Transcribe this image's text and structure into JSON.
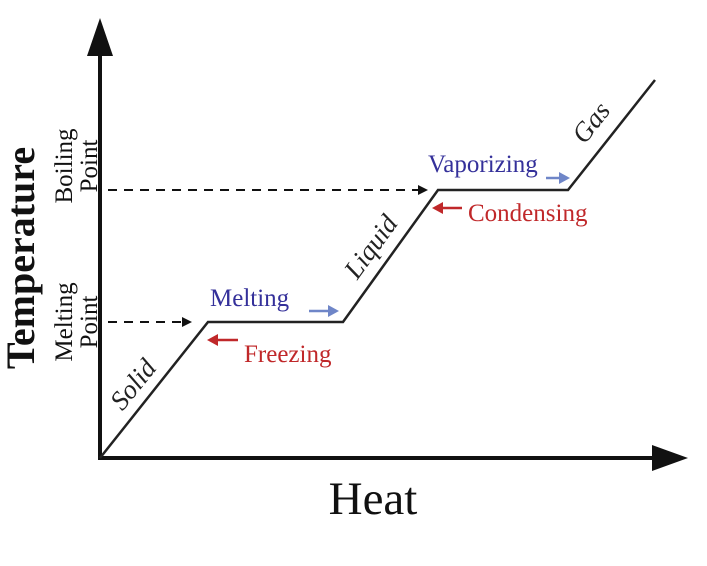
{
  "diagram": {
    "x_axis_label": "Heat",
    "y_axis_label": "Temperature",
    "melting_point_label": [
      "Melting",
      "Point"
    ],
    "boiling_point_label": [
      "Boiling",
      "Point"
    ],
    "phases": {
      "solid": "Solid",
      "liquid": "Liquid",
      "gas": "Gas"
    },
    "processes": {
      "melting": "Melting",
      "freezing": "Freezing",
      "vaporizing": "Vaporizing",
      "condensing": "Condensing"
    },
    "colors": {
      "forward_process": "#34309a",
      "reverse_process": "#c0282a",
      "forward_arrow": "#6f86c8",
      "curve": "#222222",
      "axes": "#111111"
    }
  }
}
